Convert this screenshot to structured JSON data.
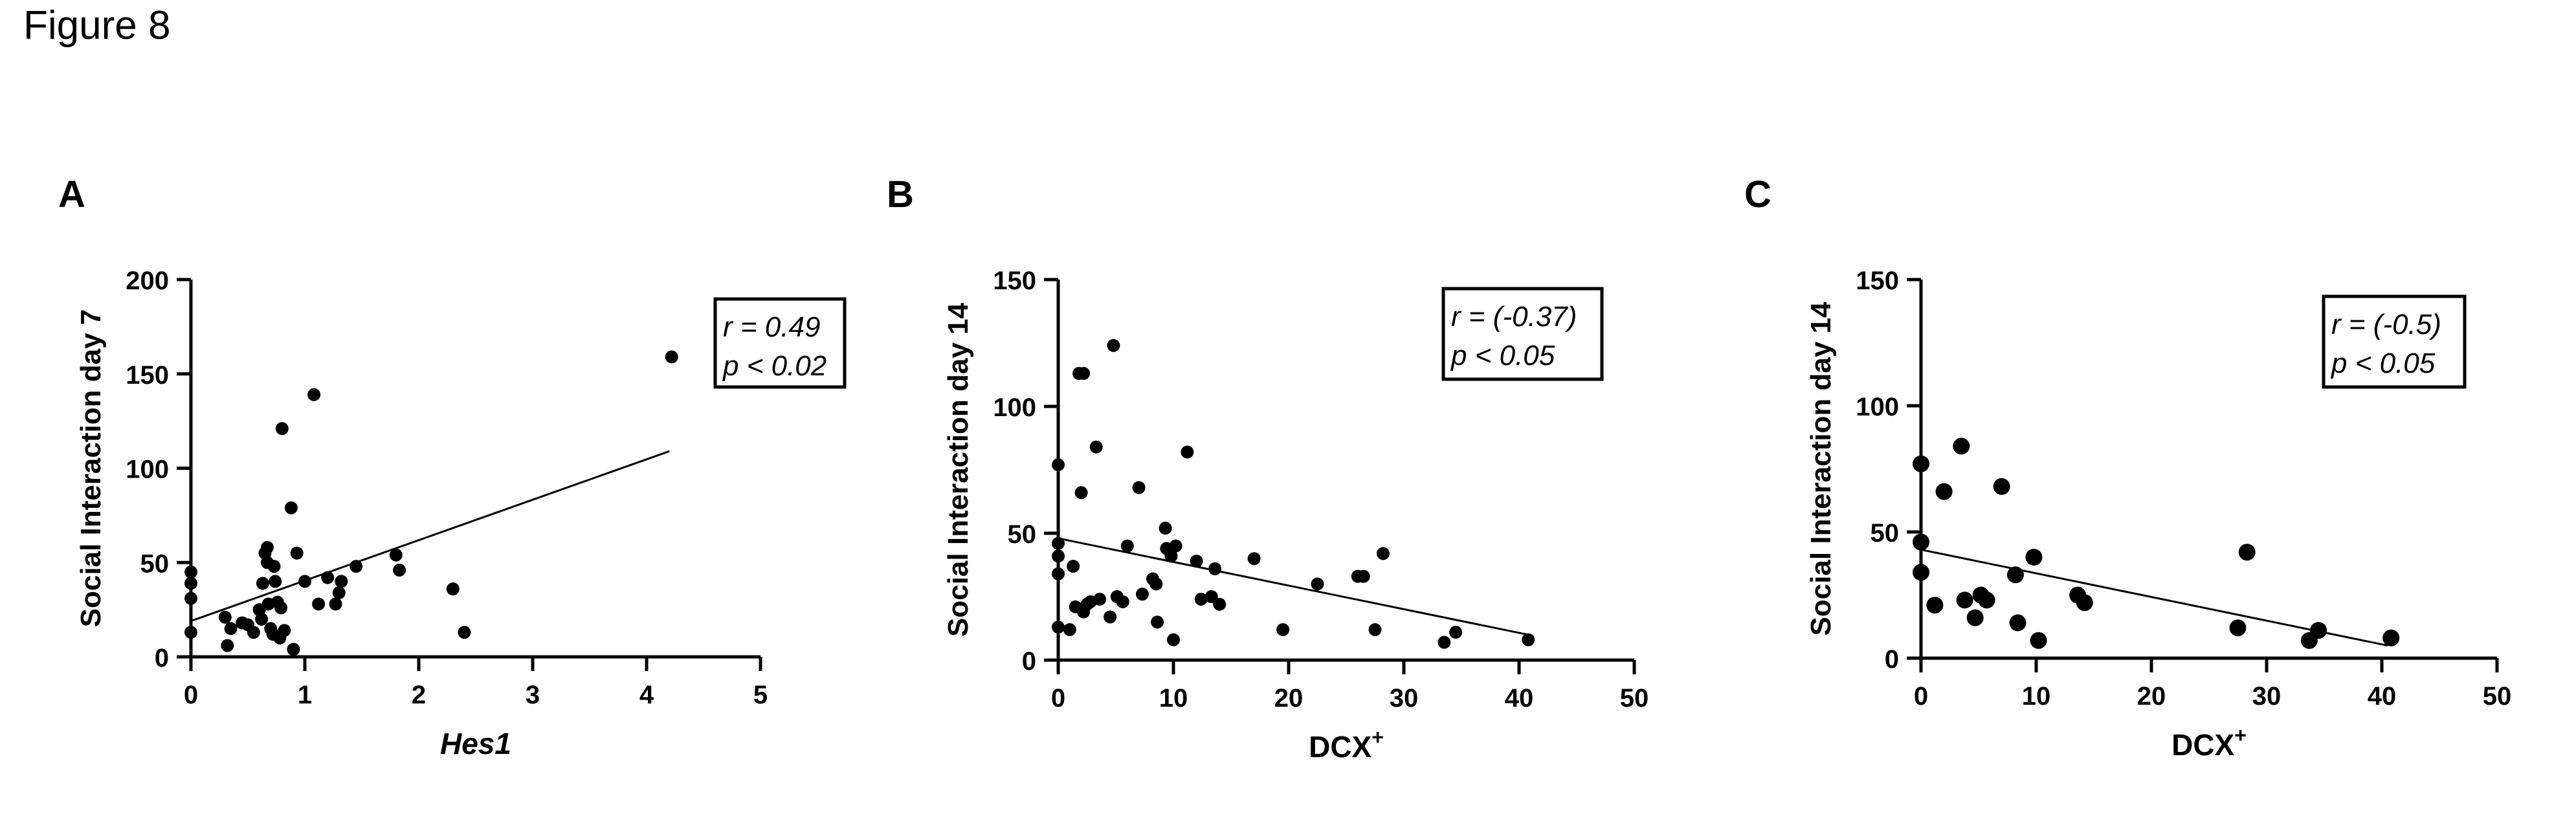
{
  "figure": {
    "title": "Figure 8"
  },
  "chart_data": [
    {
      "panel": "A",
      "type": "scatter",
      "title": "",
      "xlabel": "Hes1",
      "xlabel_italic": true,
      "xlabel_sup": "",
      "ylabel": "Social Interaction day 7",
      "xlim": [
        0,
        5
      ],
      "ylim": [
        0,
        200
      ],
      "xticks": [
        0,
        1,
        2,
        3,
        4,
        5
      ],
      "yticks": [
        0,
        50,
        100,
        150,
        200
      ],
      "grid": false,
      "annotation": {
        "r": "r = 0.49",
        "p": "p < 0.02",
        "position": "top-right"
      },
      "regression": {
        "x": [
          0,
          4.2
        ],
        "y": [
          19,
          109
        ]
      },
      "points": [
        [
          0,
          45
        ],
        [
          0,
          39
        ],
        [
          0,
          31
        ],
        [
          0,
          13
        ],
        [
          0.3,
          21
        ],
        [
          0.32,
          6
        ],
        [
          0.35,
          15
        ],
        [
          0.45,
          18
        ],
        [
          0.5,
          17
        ],
        [
          0.55,
          13
        ],
        [
          0.6,
          25
        ],
        [
          0.62,
          20
        ],
        [
          0.63,
          39
        ],
        [
          0.65,
          55
        ],
        [
          0.67,
          58
        ],
        [
          0.67,
          50
        ],
        [
          0.68,
          28
        ],
        [
          0.7,
          15
        ],
        [
          0.72,
          12
        ],
        [
          0.73,
          48
        ],
        [
          0.74,
          40
        ],
        [
          0.76,
          29
        ],
        [
          0.78,
          10
        ],
        [
          0.79,
          26
        ],
        [
          0.82,
          14
        ],
        [
          0.8,
          121
        ],
        [
          0.88,
          79
        ],
        [
          0.9,
          4
        ],
        [
          0.93,
          55
        ],
        [
          1.0,
          40
        ],
        [
          1.08,
          139
        ],
        [
          1.12,
          28
        ],
        [
          1.2,
          42
        ],
        [
          1.27,
          28
        ],
        [
          1.3,
          34
        ],
        [
          1.32,
          40
        ],
        [
          1.45,
          48
        ],
        [
          1.8,
          54
        ],
        [
          1.83,
          46
        ],
        [
          2.3,
          36
        ],
        [
          2.4,
          13
        ],
        [
          4.22,
          159
        ]
      ]
    },
    {
      "panel": "B",
      "type": "scatter",
      "title": "",
      "xlabel": "DCX",
      "xlabel_italic": false,
      "xlabel_sup": "+",
      "ylabel": "Social Interaction day 14",
      "xlim": [
        0,
        50
      ],
      "ylim": [
        0,
        150
      ],
      "xticks": [
        0,
        10,
        20,
        30,
        40,
        50
      ],
      "yticks": [
        0,
        50,
        100,
        150
      ],
      "grid": false,
      "annotation": {
        "r": "r = (-0.37)",
        "p": "p < 0.05",
        "position": "top-right"
      },
      "regression": {
        "x": [
          0,
          40.8
        ],
        "y": [
          48,
          10
        ]
      },
      "points": [
        [
          0,
          77
        ],
        [
          0,
          46
        ],
        [
          0,
          41
        ],
        [
          0,
          34
        ],
        [
          0,
          13
        ],
        [
          1,
          12
        ],
        [
          1.3,
          37
        ],
        [
          1.5,
          21
        ],
        [
          1.8,
          113
        ],
        [
          2.2,
          113
        ],
        [
          2,
          66
        ],
        [
          2.2,
          19
        ],
        [
          2.5,
          22
        ],
        [
          2.8,
          23
        ],
        [
          3.3,
          84
        ],
        [
          3.6,
          24
        ],
        [
          4.5,
          17
        ],
        [
          4.8,
          124
        ],
        [
          5.1,
          25
        ],
        [
          5.6,
          23
        ],
        [
          6,
          45
        ],
        [
          7,
          68
        ],
        [
          7.3,
          26
        ],
        [
          8.2,
          32
        ],
        [
          8.5,
          30
        ],
        [
          8.6,
          15
        ],
        [
          9.3,
          52
        ],
        [
          9.4,
          44
        ],
        [
          9.8,
          41
        ],
        [
          10.2,
          45
        ],
        [
          10,
          8
        ],
        [
          11.2,
          82
        ],
        [
          12,
          39
        ],
        [
          12.4,
          24
        ],
        [
          13.3,
          25
        ],
        [
          13.6,
          36
        ],
        [
          14,
          22
        ],
        [
          17,
          40
        ],
        [
          19.5,
          12
        ],
        [
          22.5,
          30
        ],
        [
          26,
          33
        ],
        [
          26.5,
          33
        ],
        [
          27.5,
          12
        ],
        [
          28.2,
          42
        ],
        [
          33.5,
          7
        ],
        [
          34.5,
          11
        ],
        [
          40.8,
          8
        ]
      ]
    },
    {
      "panel": "C",
      "type": "scatter",
      "title": "",
      "xlabel": "DCX",
      "xlabel_italic": false,
      "xlabel_sup": "+",
      "ylabel": "Social Interaction day 14",
      "xlim": [
        0,
        50
      ],
      "ylim": [
        0,
        150
      ],
      "xticks": [
        0,
        10,
        20,
        30,
        40,
        50
      ],
      "yticks": [
        0,
        50,
        100,
        150
      ],
      "grid": false,
      "annotation": {
        "r": "r = (-0.5)",
        "p": "p < 0.05",
        "position": "top-right"
      },
      "regression": {
        "x": [
          0,
          40.5
        ],
        "y": [
          43,
          5
        ]
      },
      "points": [
        [
          0,
          77
        ],
        [
          0,
          46
        ],
        [
          0,
          34
        ],
        [
          1.2,
          21
        ],
        [
          2,
          66
        ],
        [
          3.5,
          84
        ],
        [
          3.8,
          23
        ],
        [
          4.7,
          16
        ],
        [
          5.2,
          25
        ],
        [
          5.7,
          23
        ],
        [
          7,
          68
        ],
        [
          8.2,
          33
        ],
        [
          8.4,
          14
        ],
        [
          9.8,
          40
        ],
        [
          10.2,
          7
        ],
        [
          13.6,
          25
        ],
        [
          14.2,
          22
        ],
        [
          27.5,
          12
        ],
        [
          28.3,
          42
        ],
        [
          33.7,
          7
        ],
        [
          34.5,
          11
        ],
        [
          40.8,
          8
        ]
      ]
    }
  ]
}
